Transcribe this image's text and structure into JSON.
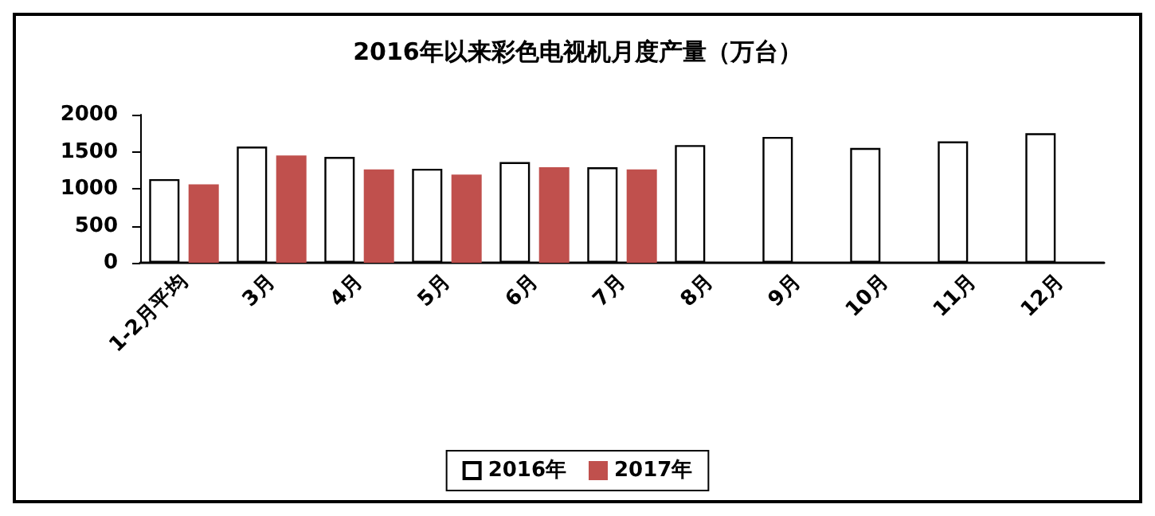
{
  "chart_data": {
    "type": "bar",
    "title": "2016年以来彩色电视机月度产量（万台）",
    "categories": [
      "1-2月平均",
      "3月",
      "4月",
      "5月",
      "6月",
      "7月",
      "8月",
      "9月",
      "10月",
      "11月",
      "12月"
    ],
    "series": [
      {
        "name": "2016年",
        "color": "#ffffff",
        "values": [
          1130,
          1570,
          1430,
          1270,
          1360,
          1290,
          1590,
          1700,
          1550,
          1640,
          1750
        ]
      },
      {
        "name": "2017年",
        "color": "#c0504d",
        "values": [
          1060,
          1450,
          1260,
          1190,
          1290,
          1260,
          null,
          null,
          null,
          null,
          null
        ]
      }
    ],
    "ylim": [
      0,
      2000
    ],
    "yticks": [
      0,
      500,
      1000,
      1500,
      2000
    ],
    "grid": false,
    "legend": "bottom"
  }
}
